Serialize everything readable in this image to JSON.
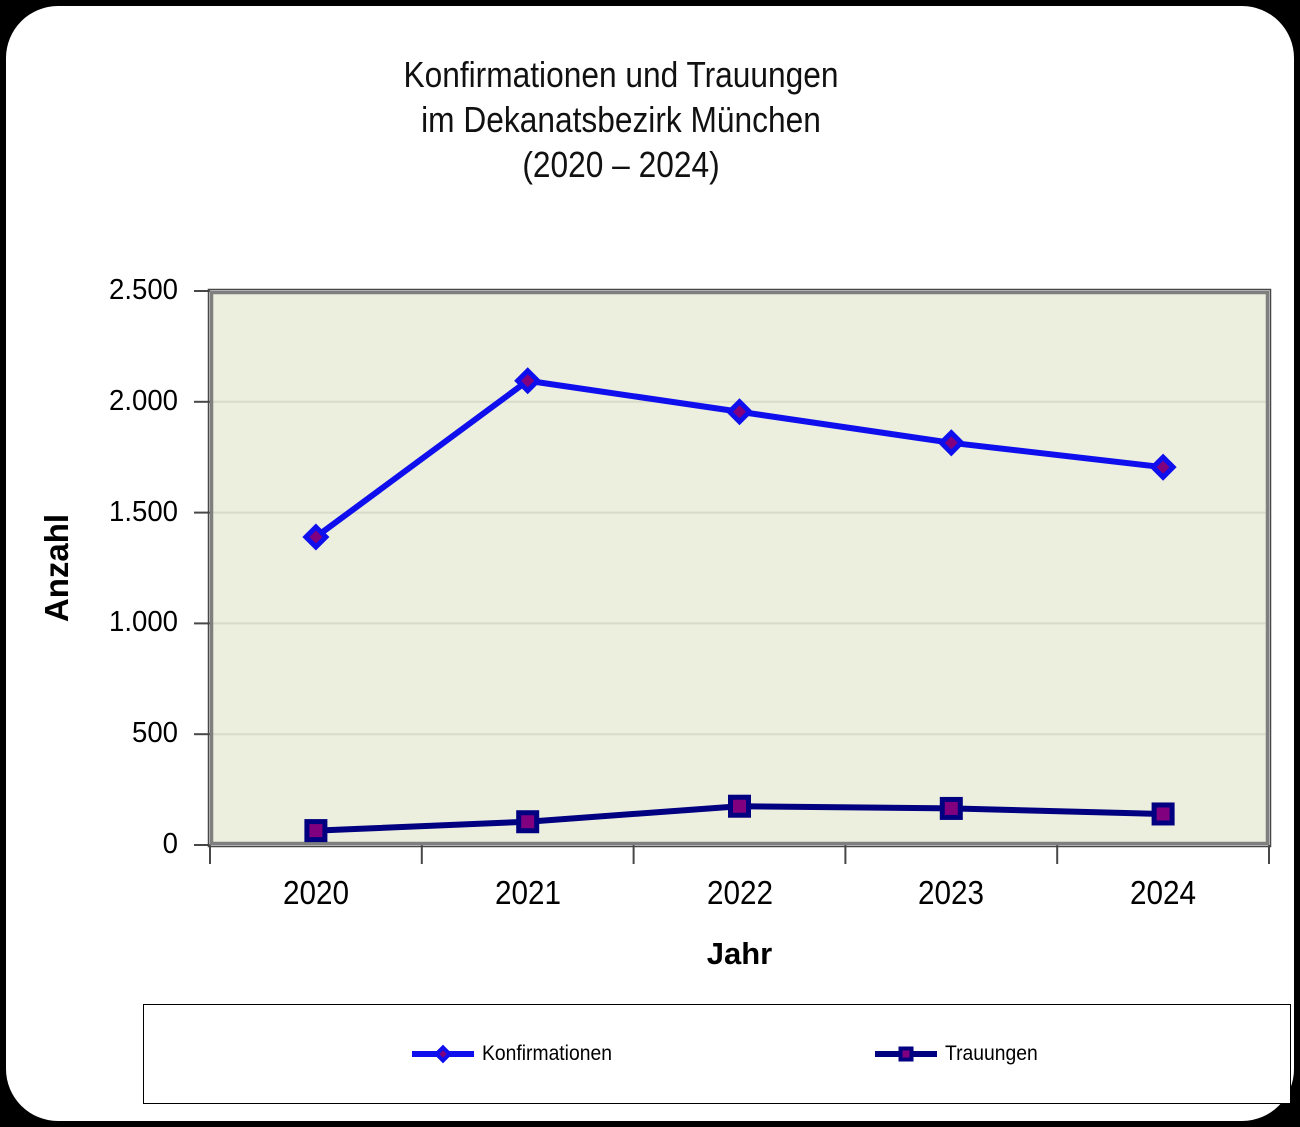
{
  "chart_data": {
    "type": "line",
    "title_lines": [
      "Konfirmationen und Trauungen",
      "im Dekanatsbezirk München",
      "(2020 – 2024)"
    ],
    "xlabel": "Jahr",
    "ylabel": "Anzahl",
    "categories": [
      "2020",
      "2021",
      "2022",
      "2023",
      "2024"
    ],
    "series": [
      {
        "name": "Konfirmationen",
        "values": [
          1390,
          2095,
          1955,
          1815,
          1705
        ],
        "line_color": "#0f0fee",
        "marker": "diamond",
        "marker_fill": "#800080",
        "marker_stroke": "#0f0fee"
      },
      {
        "name": "Trauungen",
        "values": [
          65,
          105,
          175,
          165,
          140
        ],
        "line_color": "#000080",
        "marker": "square",
        "marker_fill": "#800080",
        "marker_stroke": "#000080"
      }
    ],
    "ylim": [
      0,
      2500
    ],
    "ytick_step": 500,
    "ytick_labels": [
      "0",
      "500",
      "1.000",
      "1.500",
      "2.000",
      "2.500"
    ],
    "grid": "horizontal-only",
    "legend_position": "bottom-box",
    "colors": {
      "plot_background": "#eceede",
      "gridline": "#d9dbc9",
      "plot_border": "#7f7f7f",
      "plot_border_dark": "#474747",
      "tick": "#474747",
      "page_card": "#ffffff",
      "page_frame": "#000000"
    }
  }
}
